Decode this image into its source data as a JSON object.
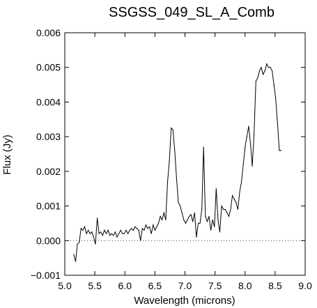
{
  "chart_data": {
    "type": "line",
    "title": "SSGSS_049_SL_A_Comb",
    "xlabel": "Wavelength (microns)",
    "ylabel": "Flux (Jy)",
    "xlim": [
      5.0,
      9.0
    ],
    "ylim": [
      -0.001,
      0.006
    ],
    "x_ticks": [
      5.0,
      5.5,
      6.0,
      6.5,
      7.0,
      7.5,
      8.0,
      8.5,
      9.0
    ],
    "x_tick_labels": [
      "5.0",
      "5.5",
      "6.0",
      "6.5",
      "7.0",
      "7.5",
      "8.0",
      "8.5",
      "9.0"
    ],
    "y_ticks": [
      -0.001,
      0.0,
      0.001,
      0.002,
      0.003,
      0.004,
      0.005,
      0.006
    ],
    "y_tick_labels": [
      "−0.001",
      "0.000",
      "0.001",
      "0.002",
      "0.003",
      "0.004",
      "0.005",
      "0.006"
    ],
    "grid": false,
    "reference_line": {
      "y": 0.0,
      "style": "dotted"
    },
    "series": [
      {
        "color": "#000000",
        "x": [
          5.15,
          5.18,
          5.21,
          5.24,
          5.27,
          5.3,
          5.33,
          5.36,
          5.39,
          5.42,
          5.45,
          5.48,
          5.51,
          5.54,
          5.57,
          5.6,
          5.63,
          5.66,
          5.69,
          5.72,
          5.75,
          5.78,
          5.81,
          5.84,
          5.87,
          5.9,
          5.93,
          5.96,
          5.99,
          6.02,
          6.05,
          6.08,
          6.11,
          6.14,
          6.17,
          6.2,
          6.23,
          6.26,
          6.29,
          6.32,
          6.35,
          6.38,
          6.41,
          6.44,
          6.47,
          6.5,
          6.53,
          6.56,
          6.59,
          6.62,
          6.65,
          6.68,
          6.71,
          6.74,
          6.77,
          6.8,
          6.83,
          6.86,
          6.89,
          6.92,
          6.95,
          6.98,
          7.01,
          7.04,
          7.07,
          7.1,
          7.13,
          7.16,
          7.19,
          7.22,
          7.25,
          7.28,
          7.31,
          7.34,
          7.37,
          7.4,
          7.43,
          7.46,
          7.49,
          7.52,
          7.55,
          7.58,
          7.61,
          7.64,
          7.67,
          7.7,
          7.73,
          7.76,
          7.79,
          7.82,
          7.85,
          7.88,
          7.91,
          7.94,
          7.97,
          8.0,
          8.03,
          8.06,
          8.09,
          8.12,
          8.15,
          8.18,
          8.21,
          8.24,
          8.27,
          8.3,
          8.33,
          8.36,
          8.39,
          8.42,
          8.45,
          8.48,
          8.51,
          8.54,
          8.57,
          8.6
        ],
        "y": [
          -0.0004,
          -0.0006,
          -0.0001,
          -5e-05,
          0.00035,
          0.0003,
          0.0004,
          0.0002,
          0.0003,
          0.0002,
          0.00025,
          0.0001,
          -0.0001,
          0.00065,
          0.0002,
          0.00025,
          0.00015,
          0.0003,
          0.0002,
          0.0003,
          0.00015,
          0.0002,
          0.00015,
          0.00025,
          0.0001,
          0.0002,
          0.0003,
          0.0002,
          0.0002,
          0.0003,
          0.0002,
          0.0003,
          0.00035,
          0.0003,
          0.0004,
          0.00035,
          0.0003,
          0.0,
          0.00035,
          0.0003,
          0.00045,
          0.00035,
          0.0004,
          0.0002,
          0.00045,
          0.0003,
          0.0004,
          0.0005,
          0.0007,
          0.0006,
          0.0008,
          0.0006,
          0.0017,
          0.0023,
          0.00325,
          0.0032,
          0.0026,
          0.0018,
          0.0011,
          0.001,
          0.0008,
          0.0006,
          0.0005,
          0.0006,
          0.0007,
          0.00075,
          0.00055,
          0.0008,
          0.0001,
          0.0005,
          0.0005,
          0.0009,
          0.0027,
          0.0007,
          0.00055,
          0.0007,
          0.0003,
          0.0006,
          0.0004,
          0.0015,
          0.0006,
          0.00025,
          0.001,
          0.0009,
          0.0009,
          0.0008,
          0.0007,
          0.0009,
          0.0013,
          0.0012,
          0.0011,
          0.0009,
          0.0014,
          0.0017,
          0.0022,
          0.0027,
          0.003,
          0.0033,
          0.0028,
          0.00215,
          0.0031,
          0.0046,
          0.0047,
          0.0049,
          0.005,
          0.0048,
          0.0049,
          0.0051,
          0.005,
          0.005,
          0.0049,
          0.0045,
          0.0041,
          0.0034,
          0.0026,
          0.0026
        ]
      }
    ]
  }
}
